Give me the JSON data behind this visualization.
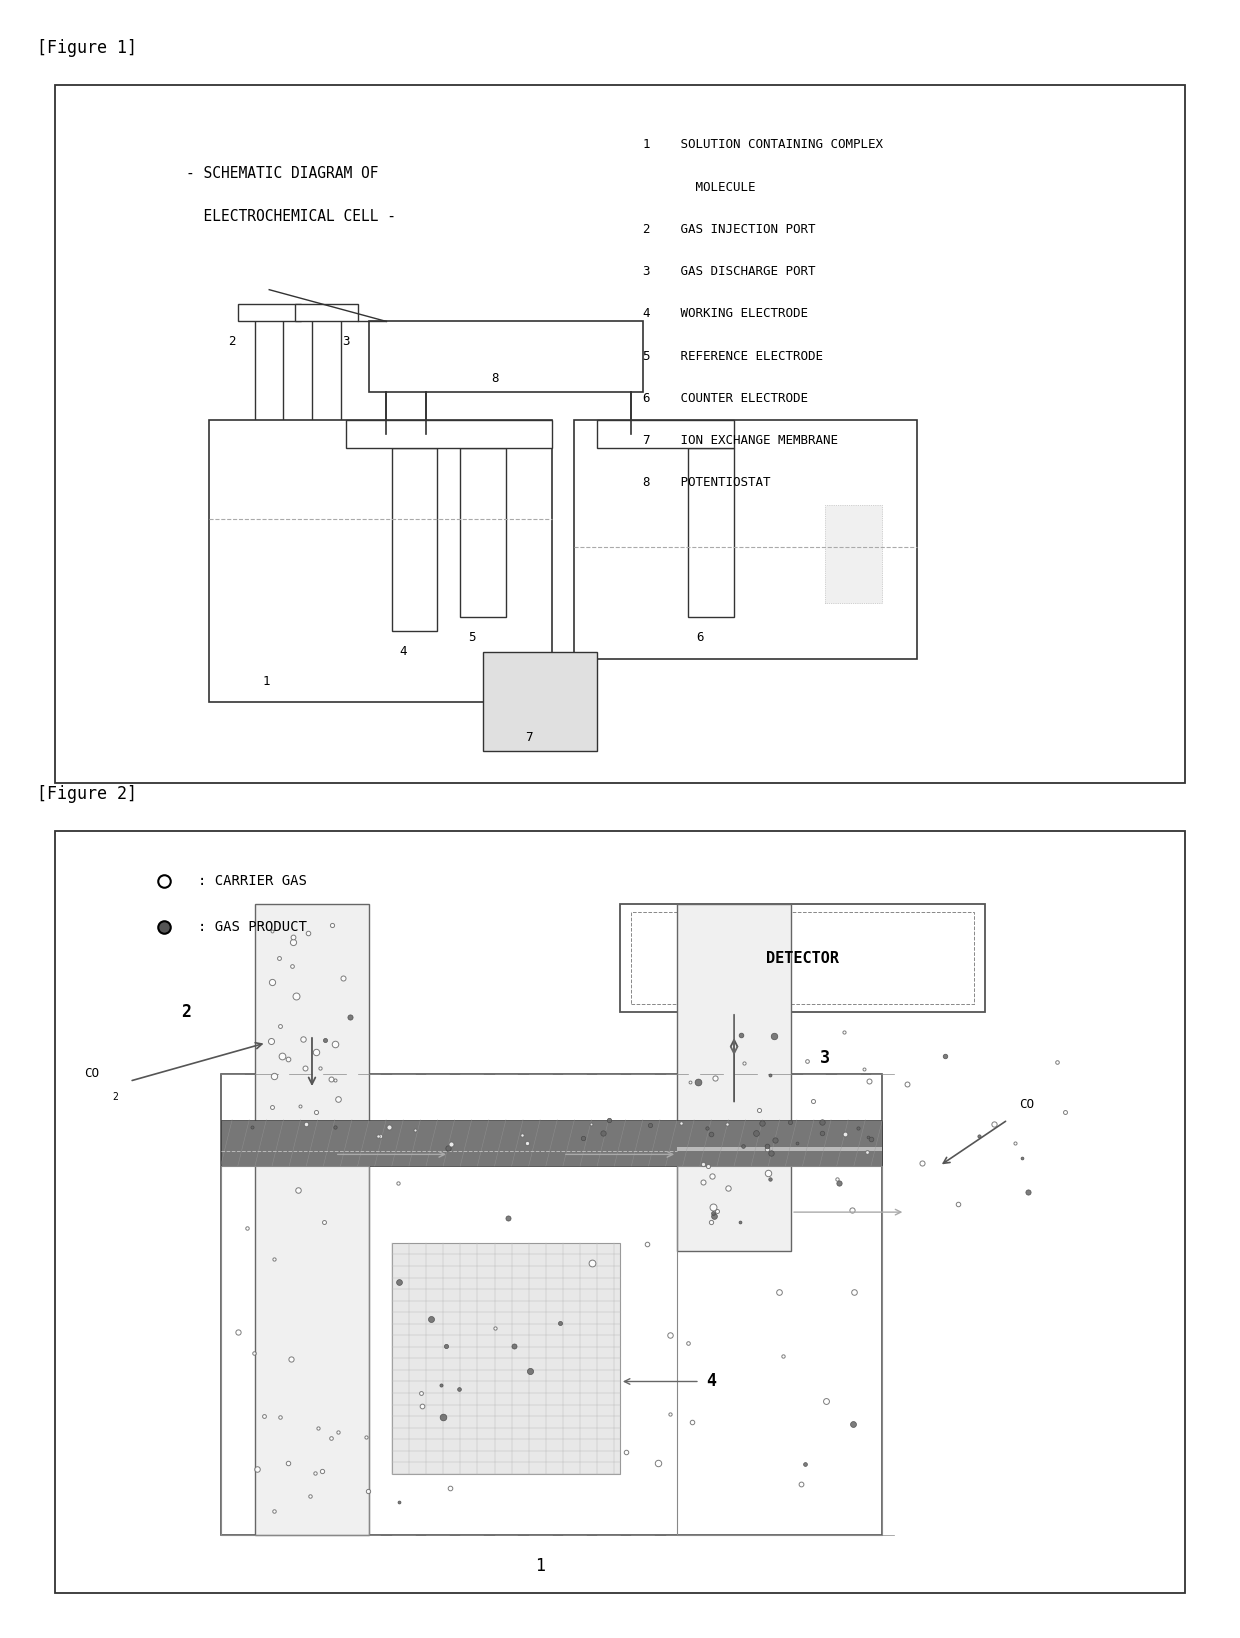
{
  "bg_color": "#ffffff",
  "line_color": "#333333",
  "gray_light": "#cccccc",
  "gray_medium": "#888888",
  "gray_dark": "#555555",
  "fig1_label": "[Figure 1]",
  "fig2_label": "[Figure 2]",
  "fig1_subtitle_line1": "- SCHEMATIC DIAGRAM OF",
  "fig1_subtitle_line2": "  ELECTROCHEMICAL CELL -",
  "legend": [
    "1    SOLUTION CONTAINING COMPLEX",
    "       MOLECULE",
    "2    GAS INJECTION PORT",
    "3    GAS DISCHARGE PORT",
    "4    WORKING ELECTRODE",
    "5    REFERENCE ELECTRODE",
    "6    COUNTER ELECTRODE",
    "7    ION EXCHANGE MEMBRANE",
    "8    POTENTIOSTAT"
  ]
}
